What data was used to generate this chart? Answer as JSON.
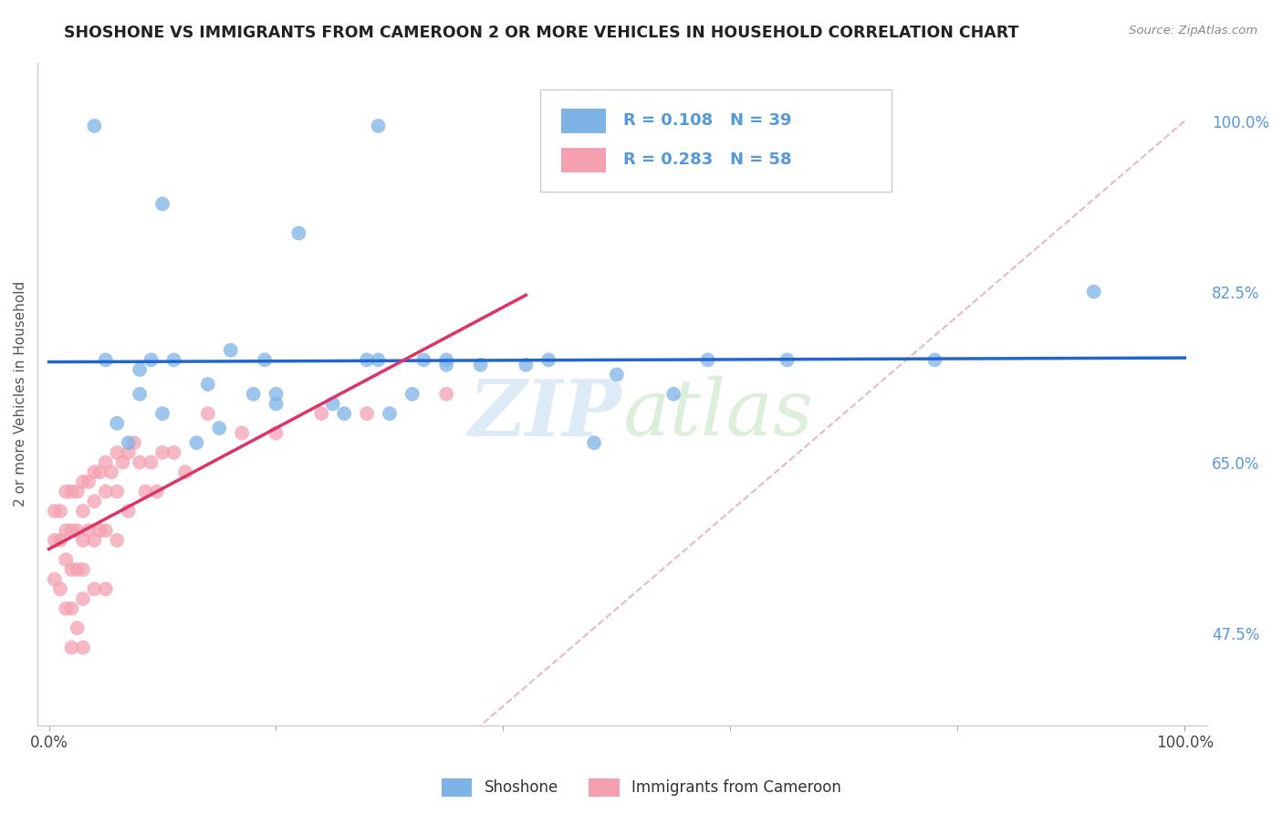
{
  "title": "SHOSHONE VS IMMIGRANTS FROM CAMEROON 2 OR MORE VEHICLES IN HOUSEHOLD CORRELATION CHART",
  "source": "Source: ZipAtlas.com",
  "ylabel": "2 or more Vehicles in Household",
  "xlim": [
    -0.01,
    1.02
  ],
  "ylim": [
    0.38,
    1.06
  ],
  "R1": 0.108,
  "N1": 39,
  "R2": 0.283,
  "N2": 58,
  "color_blue": "#7EB3E8",
  "color_pink": "#F4A0B0",
  "trend_blue": "#2266CC",
  "trend_pink": "#DD3366",
  "ref_line_color": "#EAB8C0",
  "legend_label1": "Shoshone",
  "legend_label2": "Immigrants from Cameroon",
  "watermark_zip": "ZIP",
  "watermark_atlas": "atlas",
  "background_color": "#FFFFFF",
  "grid_color": "#DDDDDD",
  "ytick_color": "#5599DD",
  "ytick_vals": [
    0.475,
    0.65,
    0.825,
    1.0
  ],
  "ytick_labels": [
    "47.5%",
    "65.0%",
    "82.5%",
    "100.0%"
  ],
  "shoshone_x": [
    0.04,
    0.1,
    0.22,
    0.29,
    0.08,
    0.14,
    0.18,
    0.25,
    0.32,
    0.38,
    0.06,
    0.1,
    0.15,
    0.2,
    0.26,
    0.3,
    0.07,
    0.13,
    0.48,
    0.55,
    0.42,
    0.16,
    0.09,
    0.33,
    0.05,
    0.11,
    0.19,
    0.28,
    0.35,
    0.44,
    0.58,
    0.65,
    0.78,
    0.92,
    0.29,
    0.2,
    0.08,
    0.35,
    0.5
  ],
  "shoshone_y": [
    0.995,
    0.915,
    0.885,
    0.995,
    0.745,
    0.73,
    0.72,
    0.71,
    0.72,
    0.75,
    0.69,
    0.7,
    0.685,
    0.71,
    0.7,
    0.7,
    0.67,
    0.67,
    0.67,
    0.72,
    0.75,
    0.765,
    0.755,
    0.755,
    0.755,
    0.755,
    0.755,
    0.755,
    0.755,
    0.755,
    0.755,
    0.755,
    0.755,
    0.825,
    0.755,
    0.72,
    0.72,
    0.75,
    0.74
  ],
  "cameroon_x": [
    0.005,
    0.005,
    0.005,
    0.01,
    0.01,
    0.01,
    0.015,
    0.015,
    0.015,
    0.015,
    0.02,
    0.02,
    0.02,
    0.02,
    0.02,
    0.025,
    0.025,
    0.025,
    0.025,
    0.03,
    0.03,
    0.03,
    0.03,
    0.03,
    0.03,
    0.035,
    0.035,
    0.04,
    0.04,
    0.04,
    0.04,
    0.045,
    0.045,
    0.05,
    0.05,
    0.05,
    0.05,
    0.055,
    0.06,
    0.06,
    0.06,
    0.065,
    0.07,
    0.07,
    0.075,
    0.08,
    0.085,
    0.09,
    0.095,
    0.1,
    0.11,
    0.12,
    0.14,
    0.17,
    0.2,
    0.24,
    0.28,
    0.35
  ],
  "cameroon_y": [
    0.6,
    0.57,
    0.53,
    0.6,
    0.57,
    0.52,
    0.62,
    0.58,
    0.55,
    0.5,
    0.62,
    0.58,
    0.54,
    0.5,
    0.46,
    0.62,
    0.58,
    0.54,
    0.48,
    0.63,
    0.6,
    0.57,
    0.54,
    0.51,
    0.46,
    0.63,
    0.58,
    0.64,
    0.61,
    0.57,
    0.52,
    0.64,
    0.58,
    0.65,
    0.62,
    0.58,
    0.52,
    0.64,
    0.66,
    0.62,
    0.57,
    0.65,
    0.66,
    0.6,
    0.67,
    0.65,
    0.62,
    0.65,
    0.62,
    0.66,
    0.66,
    0.64,
    0.7,
    0.68,
    0.68,
    0.7,
    0.7,
    0.72
  ]
}
